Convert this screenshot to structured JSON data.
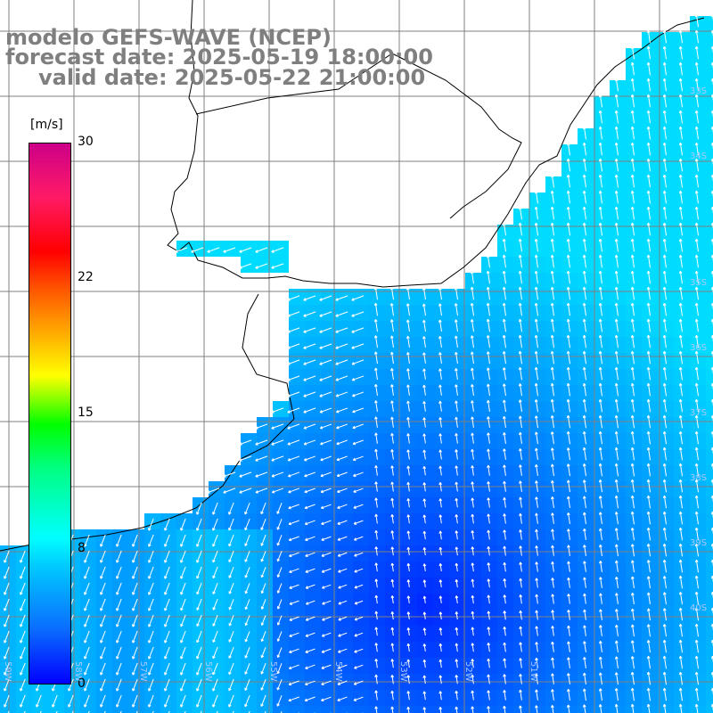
{
  "title": {
    "line1": "modelo GEFS-WAVE (NCEP)",
    "line2": "forecast date: 2025-05-19 18:00:00",
    "line3": "valid date: 2025-05-22 21:00:00"
  },
  "colorbar": {
    "unit": "[m/s]",
    "ticks": [
      "30",
      "22",
      "15",
      "8",
      "0"
    ]
  },
  "lon_labels": [
    "59W",
    "58W",
    "57W",
    "56W",
    "55W",
    "54W",
    "53W",
    "52W",
    "51W"
  ],
  "lat_labels": [
    "33S",
    "34S",
    "35S",
    "36S",
    "37S",
    "38S",
    "39S",
    "40S"
  ],
  "colors": {
    "land": "#ffffff",
    "coast": "#000000",
    "grid": "#808080",
    "arrow": "#ffffff",
    "title": "#7f7f7f"
  }
}
